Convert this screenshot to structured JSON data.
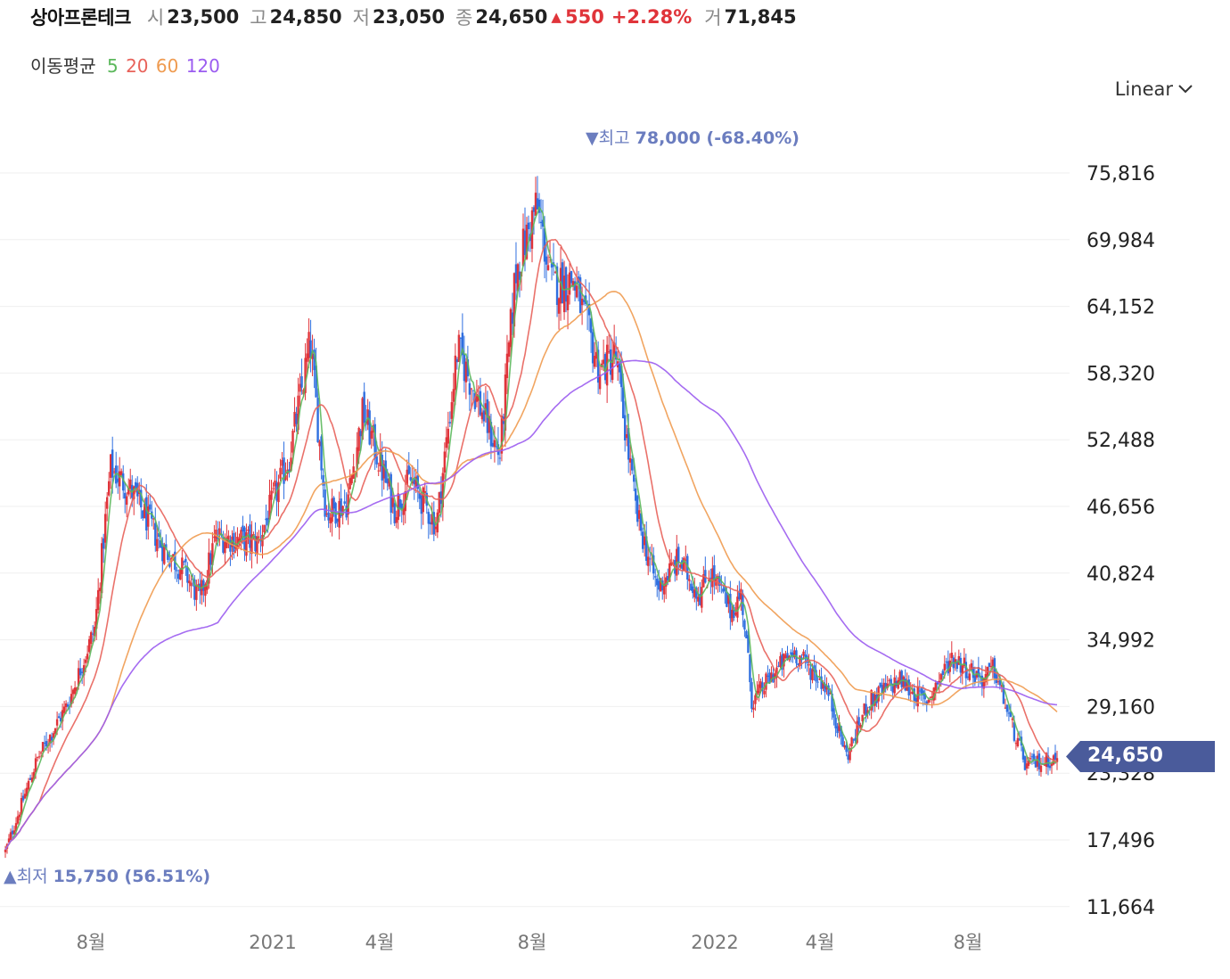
{
  "header": {
    "stock_name": "상아프론테크",
    "open_label": "시",
    "open": "23,500",
    "high_label": "고",
    "high": "24,850",
    "low_label": "저",
    "low": "23,050",
    "close_label": "종",
    "close": "24,650",
    "change": "550",
    "change_pct": "+2.28%",
    "volume_label": "거",
    "volume": "71,845"
  },
  "ma_legend": {
    "label": "이동평균",
    "periods": [
      "5",
      "20",
      "60",
      "120"
    ],
    "colors": [
      "#5cb85c",
      "#e8625a",
      "#ef9b50",
      "#9b5cf0"
    ]
  },
  "scale_selector": {
    "label": "Linear"
  },
  "current_price_tag": "24,650",
  "annotations": {
    "high_text": "최고",
    "high_value": "78,000 (-68.40%)",
    "low_text": "최저",
    "low_value": "15,750 (56.51%)"
  },
  "colors": {
    "up": "#e0343a",
    "down": "#2f6fe0",
    "annotation": "#6b7dbf",
    "price_tag": "#4a5b9b"
  },
  "chart_data": {
    "type": "candlestick",
    "y_ticks": [
      11664,
      17496,
      23328,
      29160,
      34992,
      40824,
      46656,
      52488,
      58320,
      64152,
      69984,
      75816
    ],
    "y_tick_labels": [
      "11,664",
      "17,496",
      "23,328",
      "29,160",
      "34,992",
      "40,824",
      "46,656",
      "52,488",
      "58,320",
      "64,152",
      "69,984",
      "75,816"
    ],
    "x_tick_labels": [
      "8월",
      "2021",
      "4월",
      "8월",
      "2022",
      "4월",
      "8월"
    ],
    "ylim": [
      11664,
      78000
    ],
    "price_path_t": [
      0,
      0.03,
      0.06,
      0.085,
      0.1,
      0.12,
      0.15,
      0.17,
      0.185,
      0.2,
      0.24,
      0.27,
      0.29,
      0.305,
      0.325,
      0.34,
      0.37,
      0.385,
      0.41,
      0.43,
      0.47,
      0.485,
      0.505,
      0.52,
      0.54,
      0.565,
      0.58,
      0.6,
      0.62,
      0.64,
      0.66,
      0.67,
      0.69,
      0.7,
      0.71,
      0.73,
      0.75,
      0.78,
      0.8,
      0.82,
      0.85,
      0.875,
      0.9,
      0.93,
      0.94,
      0.955,
      0.97,
      1.0
    ],
    "price_path_v": [
      16500,
      24500,
      29500,
      36000,
      50000,
      48000,
      43000,
      41000,
      38500,
      44000,
      43500,
      51000,
      61000,
      46000,
      47000,
      55000,
      46500,
      49000,
      45000,
      60500,
      51000,
      67000,
      73000,
      66000,
      66500,
      58500,
      60000,
      46000,
      39500,
      42000,
      39000,
      41000,
      37500,
      39000,
      29500,
      32000,
      34000,
      31000,
      24800,
      29500,
      31500,
      29500,
      33500,
      31500,
      32500,
      28000,
      24000,
      24650
    ],
    "ma_params": {
      "5": 5,
      "20": 20,
      "60": 60,
      "120": 120
    },
    "high_point": {
      "value": 78000
    },
    "low_point": {
      "value": 15750
    },
    "last_close": 24650
  }
}
